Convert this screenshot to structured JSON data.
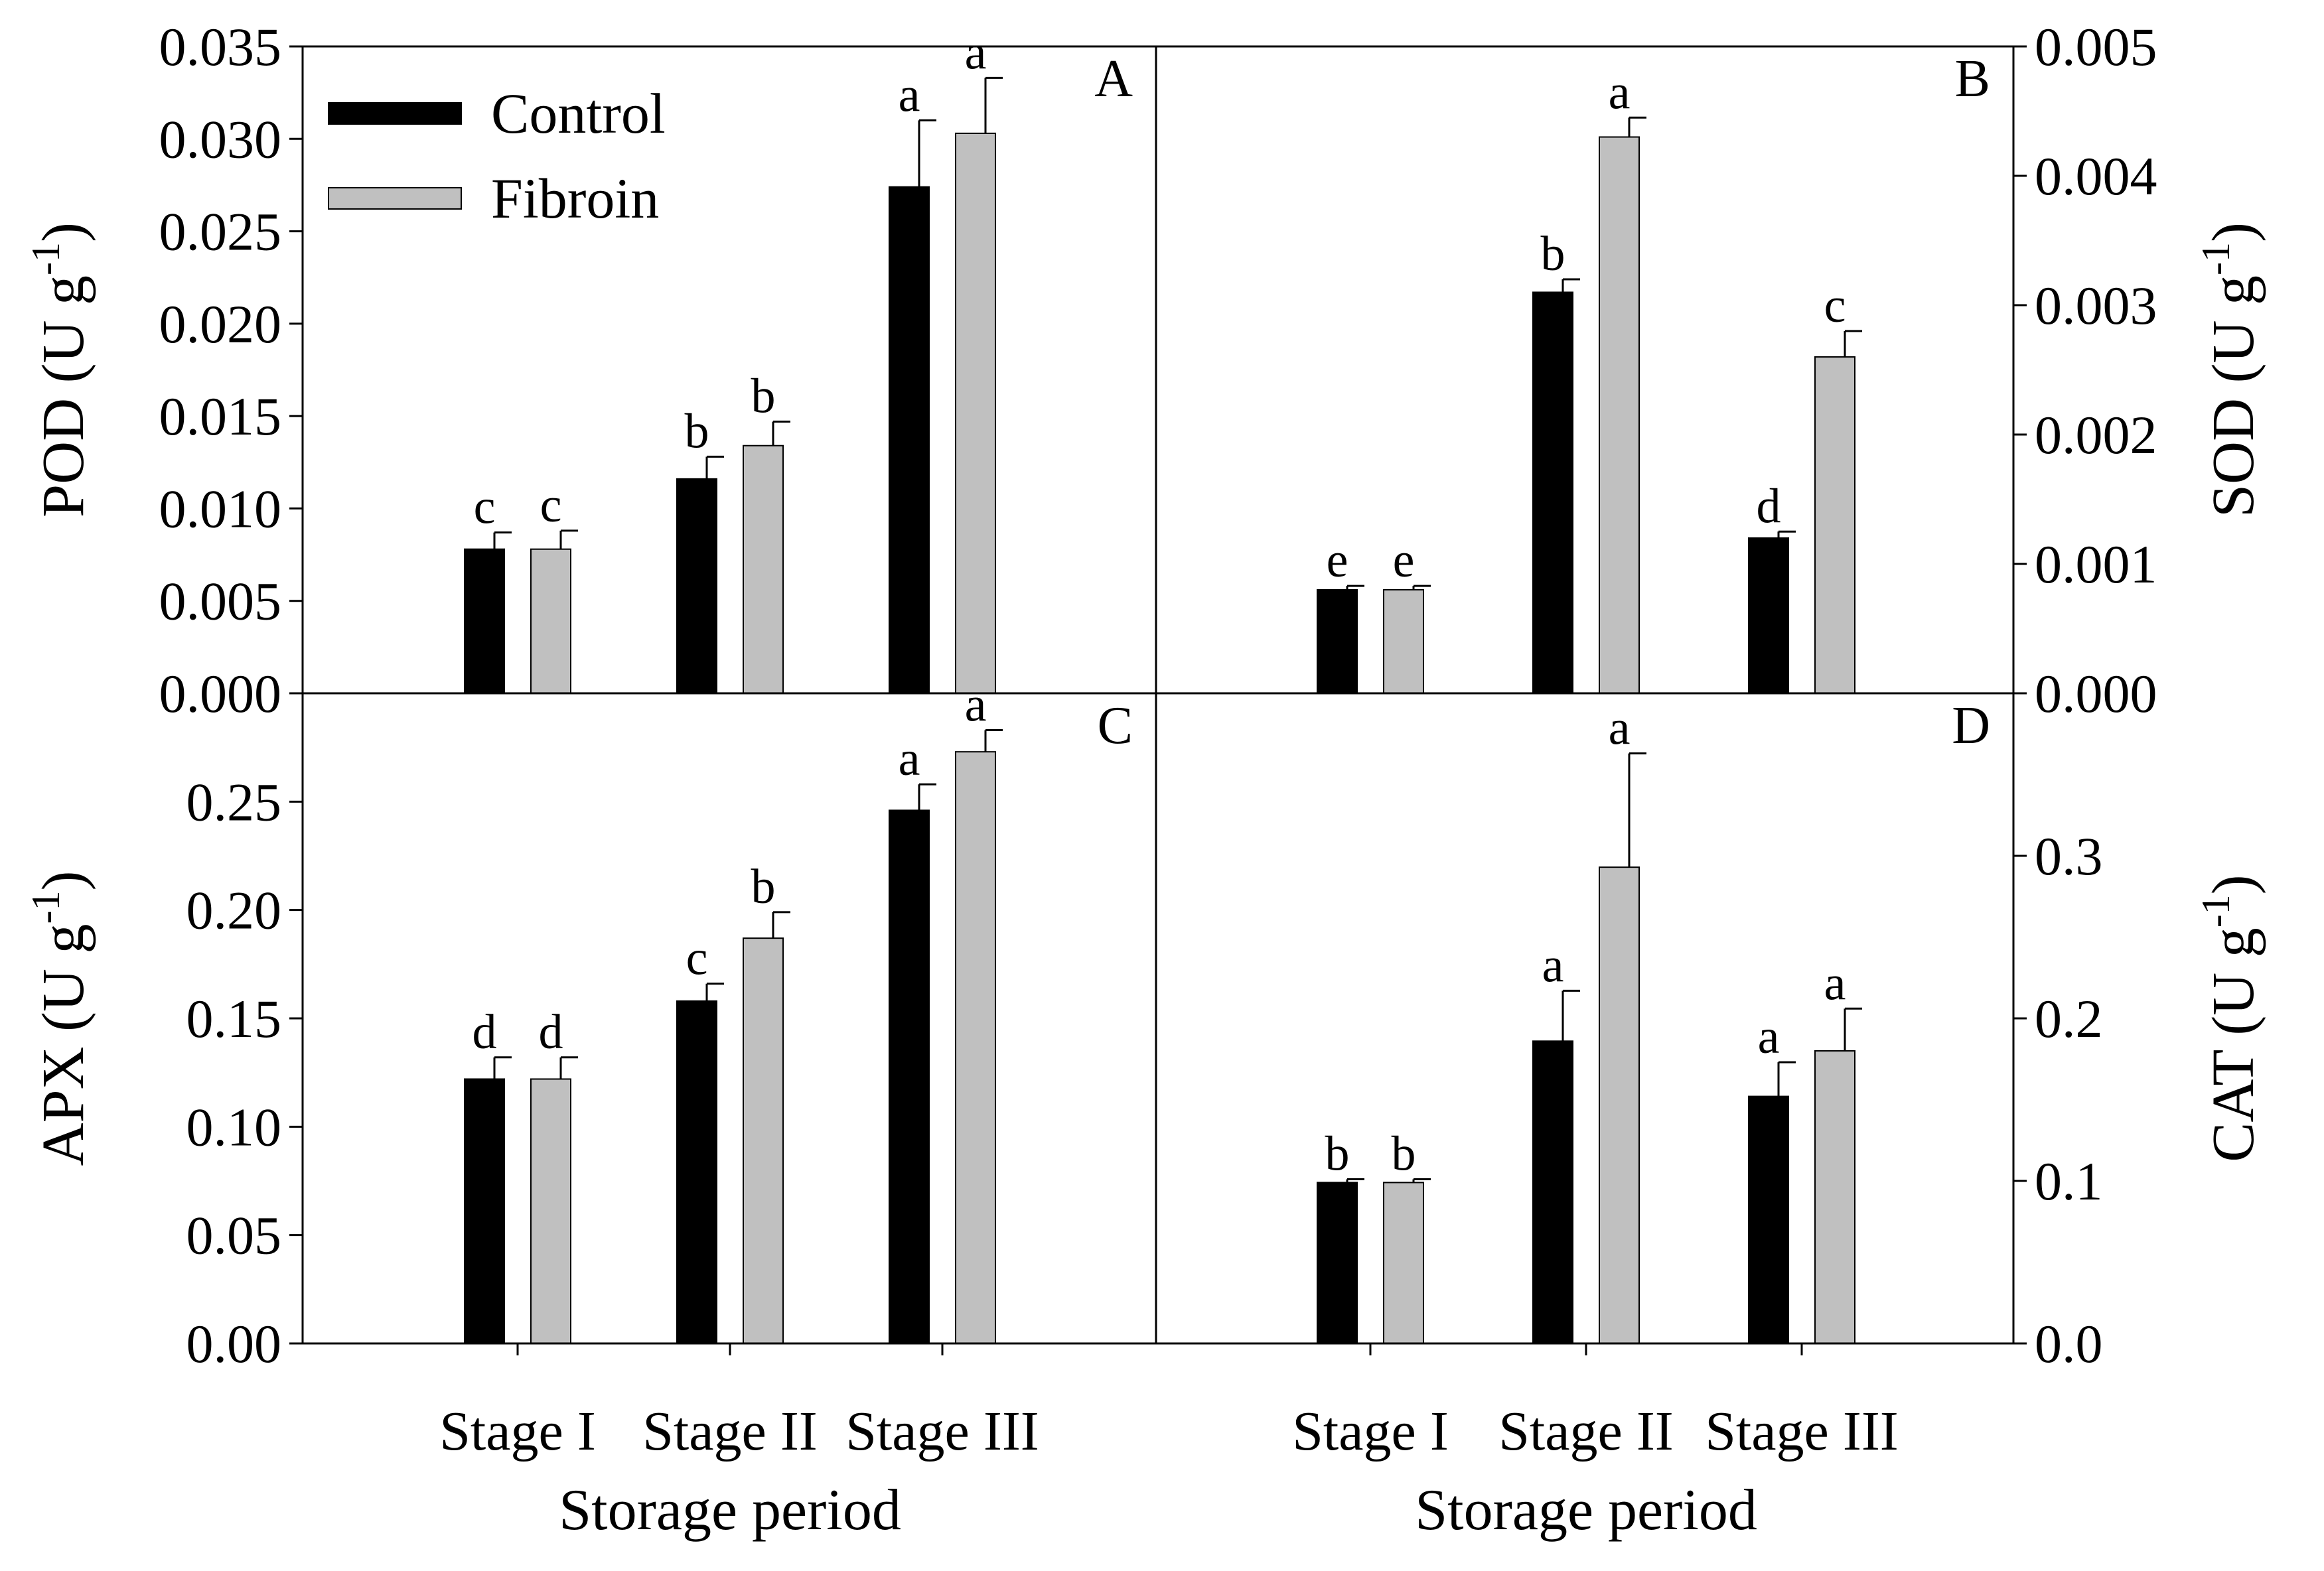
{
  "chart_data": [
    {
      "panel": "A",
      "type": "bar",
      "ylabel": "POD (U g-1)",
      "ylabel_main": "POD (U g",
      "ylabel_sup": "-1",
      "ylabel_close": ")",
      "yaxis_side": "left",
      "ylim": [
        0,
        0.035
      ],
      "yticks": [
        "0.000",
        "0.005",
        "0.010",
        "0.015",
        "0.020",
        "0.025",
        "0.030",
        "0.035"
      ],
      "categories": [
        "Stage I",
        "Stage II",
        "Stage III"
      ],
      "series": [
        {
          "name": "Control",
          "values": [
            0.0078,
            0.0116,
            0.0274
          ],
          "errors": [
            0.0009,
            0.0012,
            0.0036
          ],
          "letters": [
            "c",
            "b",
            "a"
          ]
        },
        {
          "name": "Fibroin",
          "values": [
            0.0078,
            0.0134,
            0.0303
          ],
          "errors": [
            0.001,
            0.0013,
            0.003
          ],
          "letters": [
            "c",
            "b",
            "a"
          ]
        }
      ]
    },
    {
      "panel": "B",
      "type": "bar",
      "ylabel": "SOD (U g-1)",
      "ylabel_main": "SOD (U g",
      "ylabel_sup": "-1",
      "ylabel_close": ")",
      "yaxis_side": "right",
      "ylim": [
        0,
        0.005
      ],
      "yticks": [
        "0.000",
        "0.001",
        "0.002",
        "0.003",
        "0.004",
        "0.005"
      ],
      "categories": [
        "Stage I",
        "Stage II",
        "Stage III"
      ],
      "series": [
        {
          "name": "Control",
          "values": [
            0.0008,
            0.0031,
            0.0012
          ],
          "errors": [
            3e-05,
            0.0001,
            5e-05
          ],
          "letters": [
            "e",
            "b",
            "d"
          ]
        },
        {
          "name": "Fibroin",
          "values": [
            0.0008,
            0.0043,
            0.0026
          ],
          "errors": [
            3e-05,
            0.00015,
            0.0002
          ],
          "letters": [
            "e",
            "a",
            "c"
          ]
        }
      ]
    },
    {
      "panel": "C",
      "type": "bar",
      "ylabel": "APX (U g-1)",
      "ylabel_main": "APX (U g",
      "ylabel_sup": "-1",
      "ylabel_close": ")",
      "yaxis_side": "left",
      "ylim": [
        0,
        0.3
      ],
      "yticks": [
        "0.00",
        "0.05",
        "0.10",
        "0.15",
        "0.20",
        "0.25"
      ],
      "categories": [
        "Stage I",
        "Stage II",
        "Stage III"
      ],
      "xlabel": "Storage period",
      "series": [
        {
          "name": "Control",
          "values": [
            0.122,
            0.158,
            0.246
          ],
          "errors": [
            0.01,
            0.008,
            0.012
          ],
          "letters": [
            "d",
            "c",
            "a"
          ]
        },
        {
          "name": "Fibroin",
          "values": [
            0.122,
            0.187,
            0.273
          ],
          "errors": [
            0.01,
            0.012,
            0.01
          ],
          "letters": [
            "d",
            "b",
            "a"
          ]
        }
      ]
    },
    {
      "panel": "D",
      "type": "bar",
      "ylabel": "CAT (U g-1)",
      "ylabel_main": "CAT (U g",
      "ylabel_sup": "-1",
      "ylabel_close": ")",
      "yaxis_side": "right",
      "ylim": [
        0,
        0.4
      ],
      "yticks": [
        "0.0",
        "0.1",
        "0.2",
        "0.3"
      ],
      "categories": [
        "Stage I",
        "Stage II",
        "Stage III"
      ],
      "xlabel": "Storage period",
      "series": [
        {
          "name": "Control",
          "values": [
            0.099,
            0.186,
            0.152
          ],
          "errors": [
            0.002,
            0.031,
            0.021
          ],
          "letters": [
            "b",
            "a",
            "a"
          ]
        },
        {
          "name": "Fibroin",
          "values": [
            0.099,
            0.293,
            0.18
          ],
          "errors": [
            0.002,
            0.07,
            0.026
          ],
          "letters": [
            "b",
            "a",
            "a"
          ]
        }
      ]
    }
  ],
  "legend": {
    "position": "top-left of panel A",
    "items": [
      {
        "label": "Control",
        "color": "#000000"
      },
      {
        "label": "Fibroin",
        "color": "#c0c0c0"
      }
    ]
  },
  "colors": {
    "control": "#000000",
    "fibroin": "#c0c0c0",
    "axis": "#000000"
  }
}
